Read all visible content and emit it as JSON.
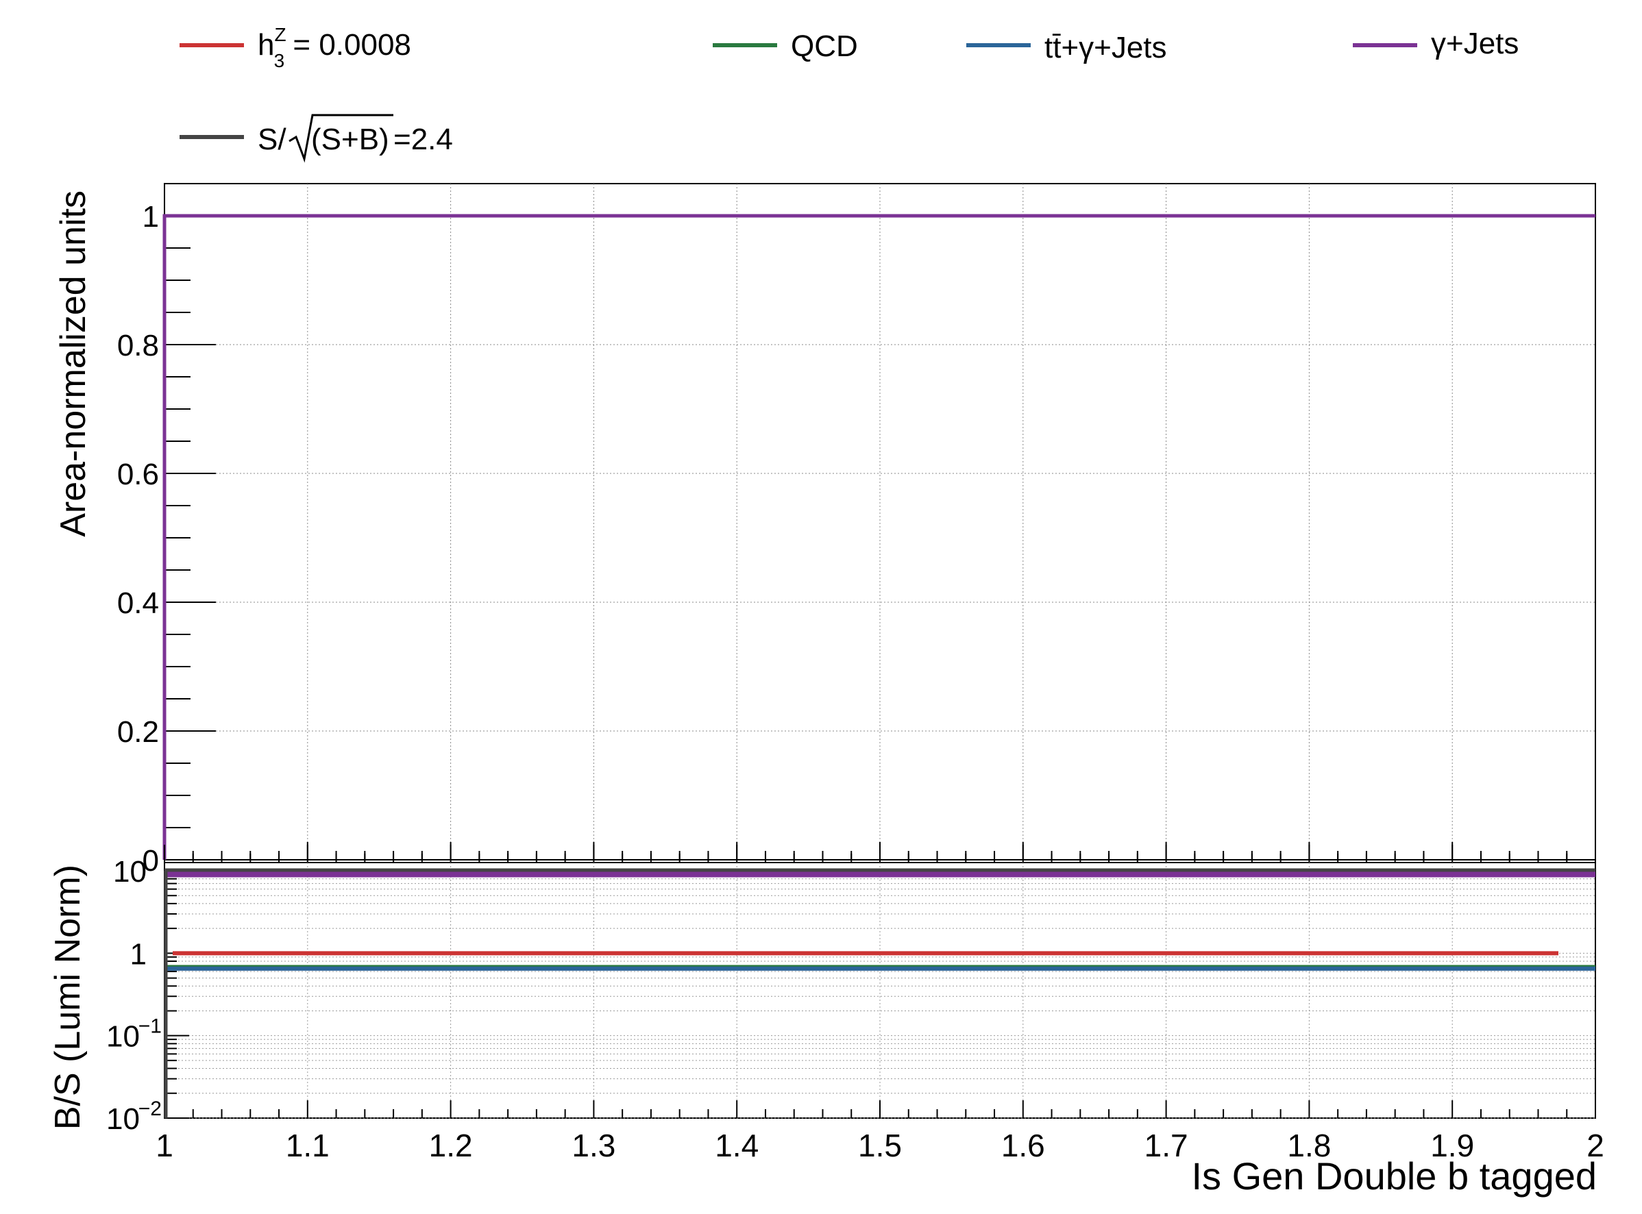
{
  "chart_data": [
    {
      "type": "line",
      "panel": "top",
      "ylabel": "Area-normalized units",
      "xlim": [
        1,
        2
      ],
      "ylim": [
        0,
        1.05
      ],
      "grid": true,
      "y_ticks": [
        0,
        0.2,
        0.4,
        0.6,
        0.8,
        1
      ],
      "y_tick_labels": [
        "0",
        "0.2",
        "0.4",
        "0.6",
        "0.8",
        "1"
      ],
      "series": [
        {
          "name": "h_3^Z = 0.0008",
          "color": "#cc3333",
          "x": [
            1,
            2
          ],
          "y": [
            1,
            1
          ]
        },
        {
          "name": "QCD",
          "color": "#2a7a3f",
          "x": [
            1,
            2
          ],
          "y": [
            1,
            1
          ]
        },
        {
          "name": "tt̄+γ+Jets",
          "color": "#2b6599",
          "x": [
            1,
            2
          ],
          "y": [
            1,
            1
          ]
        },
        {
          "name": "γ+Jets",
          "color": "#7b3294",
          "x": [
            1,
            2
          ],
          "y": [
            1,
            1
          ]
        }
      ]
    },
    {
      "type": "line",
      "panel": "bottom",
      "ylabel": "B/S (Lumi Norm)",
      "xlabel": "Is Gen Double b tagged",
      "xlim": [
        1,
        2
      ],
      "ylim_log10": [
        -2,
        1.1
      ],
      "log_y": true,
      "grid": true,
      "x_ticks": [
        1,
        1.1,
        1.2,
        1.3,
        1.4,
        1.5,
        1.6,
        1.7,
        1.8,
        1.9,
        2
      ],
      "x_tick_labels": [
        "1",
        "1.1",
        "1.2",
        "1.3",
        "1.4",
        "1.5",
        "1.6",
        "1.7",
        "1.8",
        "1.9",
        "2"
      ],
      "y_tick_labels": [
        {
          "base": "10",
          "exp": "−2",
          "value": 0.01
        },
        {
          "base": "10",
          "exp": "−1",
          "value": 0.1
        },
        {
          "base": "1",
          "exp": "",
          "value": 1
        },
        {
          "base": "10",
          "exp": "",
          "value": 10
        }
      ],
      "series": [
        {
          "name": "S/√(S+B)",
          "color": "#444444",
          "x": [
            1,
            2
          ],
          "y": [
            10,
            10
          ]
        },
        {
          "name": "γ+Jets",
          "color": "#7b3294",
          "x": [
            1,
            2
          ],
          "y": [
            9.0,
            9.0
          ]
        },
        {
          "name": "h_3^Z = 0.0008",
          "color": "#cc3333",
          "x": [
            1,
            2
          ],
          "y": [
            1.0,
            1.0
          ]
        },
        {
          "name": "QCD",
          "color": "#2a7a3f",
          "x": [
            1,
            2
          ],
          "y": [
            0.68,
            0.68
          ]
        },
        {
          "name": "tt̄+γ+Jets",
          "color": "#2b6599",
          "x": [
            1,
            2
          ],
          "y": [
            0.65,
            0.65
          ]
        }
      ]
    }
  ],
  "legend": {
    "items": [
      {
        "base": "h",
        "sup": "Z",
        "sub": "3",
        "rest": " = 0.0008",
        "color": "#cc3333"
      },
      {
        "text": "QCD",
        "color": "#2a7a3f"
      },
      {
        "text": "tt̄+γ+Jets",
        "color": "#2b6599"
      },
      {
        "text": "γ+Jets",
        "color": "#7b3294"
      },
      {
        "prefix": "S/",
        "radicand": "(S+B)",
        "suffix": "=2.4",
        "color": "#444444"
      }
    ]
  }
}
